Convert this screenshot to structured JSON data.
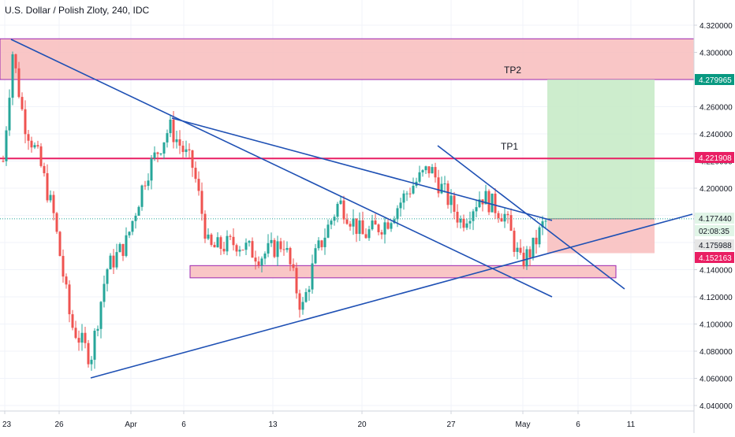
{
  "chart_data": {
    "type": "candlestick",
    "title": "U.S. Dollar / Polish Zloty, 240, IDC",
    "x_tick_labels": [
      "23",
      "26",
      "Apr",
      "6",
      "13",
      "20",
      "27",
      "May",
      "6",
      "11"
    ],
    "y_tick_labels": [
      "4.320000",
      "4.300000",
      "4.280000",
      "4.260000",
      "4.240000",
      "4.220000",
      "4.200000",
      "4.180000",
      "4.160000",
      "4.140000",
      "4.120000",
      "4.100000",
      "4.080000",
      "4.060000",
      "4.040000"
    ],
    "ylim": [
      4.035,
      4.33
    ],
    "price_tags": [
      {
        "label": "4.279965",
        "value": 4.279965,
        "color": "#089981"
      },
      {
        "label": "4.221908",
        "value": 4.221908,
        "color": "#e91e63"
      },
      {
        "label": "4.177440",
        "value": 4.17744,
        "color": "#e1f5e7"
      },
      {
        "label": "02:08:35",
        "value": 4.17,
        "color": "#e1f5e7"
      },
      {
        "label": "4.175988",
        "value": 4.175988,
        "color": "#e6e6e6"
      },
      {
        "label": "4.152163",
        "value": 4.152163,
        "color": "#e91e63"
      }
    ],
    "annotations": [
      {
        "label": "TP2",
        "value": 4.2845
      },
      {
        "label": "TP1",
        "value": 4.2285
      }
    ],
    "zones": {
      "resistance_top": [
        4.28,
        4.31
      ],
      "support": [
        4.134,
        4.143
      ],
      "target_profit": [
        4.17744,
        4.279965
      ],
      "stop_loss": [
        4.152163,
        4.17744
      ]
    },
    "horizontal_lines": [
      4.221908
    ],
    "current_price": 4.17744,
    "colors": {
      "up": "#26a69a",
      "down": "#ef5350",
      "trendline": "#1e50b4",
      "zone_red": "#f8bcbc",
      "zone_green": "#c8ebc8"
    }
  }
}
